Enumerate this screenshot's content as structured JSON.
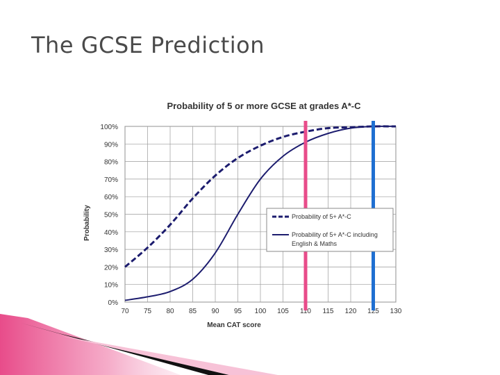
{
  "slide": {
    "title": "The GCSE Prediction"
  },
  "chart_data": {
    "type": "line",
    "title": "Probability of 5 or more GCSE at grades A*-C",
    "xlabel": "Mean CAT score",
    "ylabel": "Probability",
    "xlim": [
      70,
      130
    ],
    "ylim": [
      0,
      100
    ],
    "x_ticks": [
      "70",
      "75",
      "80",
      "85",
      "90",
      "95",
      "100",
      "105",
      "110",
      "115",
      "120",
      "125",
      "130"
    ],
    "y_ticks": [
      "0%",
      "10%",
      "20%",
      "30%",
      "40%",
      "50%",
      "60%",
      "70%",
      "80%",
      "90%",
      "100%"
    ],
    "grid": true,
    "legend_position": "center-right",
    "series": [
      {
        "name": "Probability of 5+ A*-C",
        "style": "dashed",
        "color": "#1c1c6e",
        "x": [
          70,
          75,
          80,
          85,
          90,
          95,
          100,
          105,
          110,
          115,
          120,
          125,
          130
        ],
        "y": [
          20,
          31,
          44,
          59,
          72,
          82,
          89,
          94,
          97,
          99,
          99.5,
          100,
          100
        ]
      },
      {
        "name": "Probability of 5+ A*-C including",
        "name_line2": "English & Maths",
        "style": "solid",
        "color": "#1c1c6e",
        "x": [
          70,
          75,
          80,
          85,
          90,
          95,
          100,
          105,
          110,
          115,
          120,
          125,
          130
        ],
        "y": [
          1,
          3,
          6,
          13,
          28,
          50,
          70,
          83,
          91,
          96,
          99,
          100,
          100
        ]
      }
    ],
    "markers": [
      {
        "x": 110,
        "color": "#e84c8a"
      },
      {
        "x": 125,
        "color": "#1f6fd1"
      }
    ]
  },
  "colors": {
    "axis_text": "#333333",
    "grid": "#9a9a9a",
    "decor_pink": "#e84c8a",
    "decor_black": "#111111"
  }
}
